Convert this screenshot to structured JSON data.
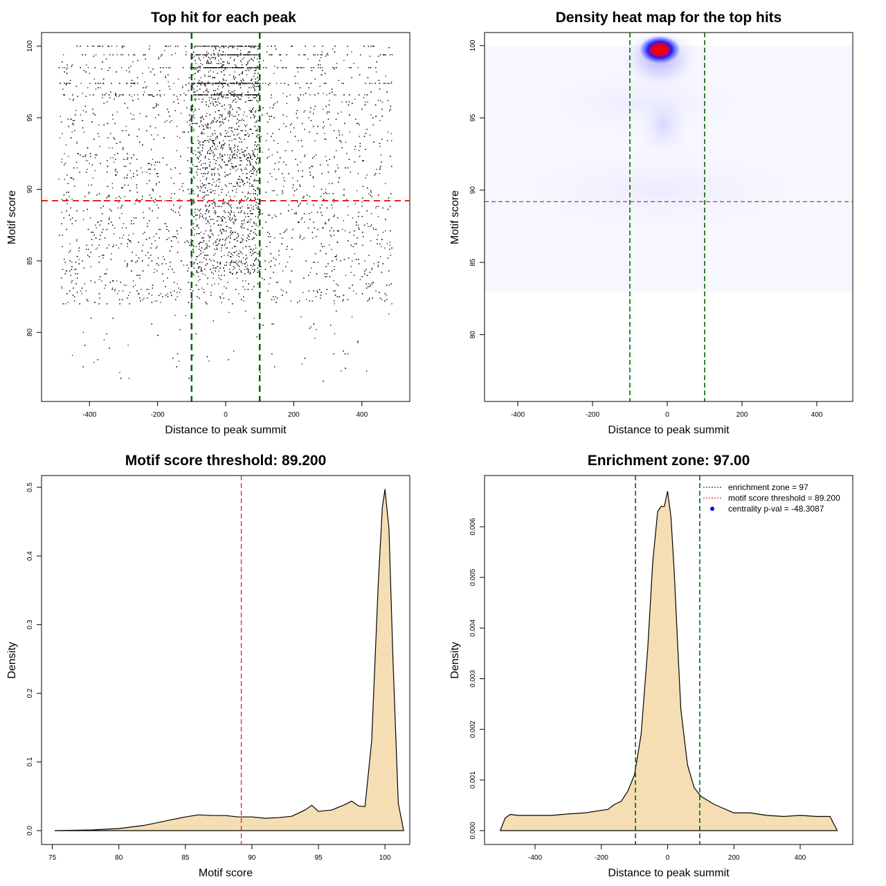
{
  "chart_data": [
    {
      "type": "scatter",
      "title": "Top hit for each peak",
      "xlabel": "Distance to peak summit",
      "ylabel": "Motif score",
      "xlim": [
        -500,
        500
      ],
      "ylim": [
        76,
        101
      ],
      "xticks": [
        -400,
        -200,
        0,
        200,
        400
      ],
      "yticks": [
        80,
        85,
        90,
        95,
        100
      ],
      "vlines": [
        -100,
        100
      ],
      "hline": 89.2,
      "point_count_approx": 9000,
      "dense_center_range": [
        -100,
        100
      ],
      "dense_score_rows": [
        100,
        99.4,
        98.5,
        97.4,
        96.6
      ]
    },
    {
      "type": "heatmap",
      "title": "Density heat map for the top hits",
      "xlabel": "Distance to peak summit",
      "ylabel": "Motif score",
      "xlim": [
        -500,
        500
      ],
      "ylim": [
        76,
        101
      ],
      "xticks": [
        -400,
        -200,
        0,
        200,
        400
      ],
      "yticks": [
        80,
        85,
        90,
        95,
        100
      ],
      "vlines": [
        -100,
        100
      ],
      "hline": 89.2,
      "hotspot": {
        "x": -20,
        "y": 100
      },
      "secondary_blob": {
        "x": -10,
        "y": 94.5
      }
    },
    {
      "type": "area",
      "title": "Motif score threshold: 89.200",
      "xlabel": "Motif score",
      "ylabel": "Density",
      "xlim": [
        75,
        102
      ],
      "ylim": [
        0,
        0.52
      ],
      "xticks": [
        75,
        80,
        85,
        90,
        95,
        100
      ],
      "yticks": [
        0.0,
        0.1,
        0.2,
        0.3,
        0.4,
        0.5
      ],
      "ytick_labels": [
        "0.0",
        "0.1",
        "0.2",
        "0.3",
        "0.4",
        "0.5"
      ],
      "vline": 89.2,
      "x": [
        75.2,
        78,
        80,
        82,
        83,
        84,
        85,
        86,
        87,
        88,
        89,
        90,
        91,
        92,
        93,
        94,
        94.5,
        95,
        96,
        97,
        97.5,
        98,
        98.5,
        99,
        99.5,
        99.8,
        100,
        100.3,
        100.6,
        101,
        101.4
      ],
      "values": [
        0.0,
        0.001,
        0.003,
        0.008,
        0.012,
        0.016,
        0.02,
        0.023,
        0.022,
        0.022,
        0.02,
        0.02,
        0.018,
        0.019,
        0.021,
        0.03,
        0.037,
        0.028,
        0.03,
        0.038,
        0.043,
        0.036,
        0.035,
        0.13,
        0.36,
        0.47,
        0.497,
        0.44,
        0.25,
        0.04,
        0.0
      ]
    },
    {
      "type": "area",
      "title": "Enrichment zone: 97.00",
      "xlabel": "Distance to peak summit",
      "ylabel": "Density",
      "xlim": [
        -520,
        520
      ],
      "ylim": [
        0,
        0.0069
      ],
      "xticks": [
        -400,
        -200,
        0,
        200,
        400
      ],
      "yticks": [
        0,
        0.001,
        0.002,
        0.003,
        0.004,
        0.005,
        0.006
      ],
      "ytick_labels": [
        "0.000",
        "0.001",
        "0.002",
        "0.003",
        "0.004",
        "0.005",
        "0.006"
      ],
      "vlines": [
        -97,
        97
      ],
      "x": [
        -505,
        -490,
        -475,
        -450,
        -400,
        -350,
        -300,
        -250,
        -200,
        -180,
        -160,
        -140,
        -120,
        -100,
        -80,
        -60,
        -45,
        -30,
        -20,
        -10,
        0,
        10,
        20,
        30,
        40,
        60,
        80,
        100,
        140,
        200,
        250,
        300,
        350,
        400,
        450,
        490,
        500,
        512
      ],
      "values": [
        0.0,
        0.00025,
        0.00032,
        0.0003,
        0.0003,
        0.0003,
        0.00033,
        0.00035,
        0.0004,
        0.00042,
        0.00052,
        0.00058,
        0.00078,
        0.0011,
        0.0019,
        0.0036,
        0.0053,
        0.0063,
        0.0064,
        0.0064,
        0.0067,
        0.0062,
        0.0051,
        0.0037,
        0.0024,
        0.0013,
        0.00085,
        0.00068,
        0.00052,
        0.00035,
        0.00035,
        0.0003,
        0.00028,
        0.0003,
        0.00028,
        0.00028,
        0.00015,
        0.0
      ],
      "legend": {
        "position": "top-right",
        "entries": [
          {
            "label": "enrichment zone = 97",
            "style": "dotted",
            "color": "#006400"
          },
          {
            "label": "motif score threshold = 89.200",
            "style": "dotted",
            "color": "#e62020"
          },
          {
            "label": "centrality p-val = -48.3087",
            "style": "point",
            "color": "#0000ff"
          }
        ]
      }
    }
  ],
  "colors": {
    "threshold_line": "#e62020",
    "zone_line": "#006400",
    "fill": "#f5deb3",
    "heat_low": "#0000ff",
    "heat_high": "#ff0000"
  }
}
